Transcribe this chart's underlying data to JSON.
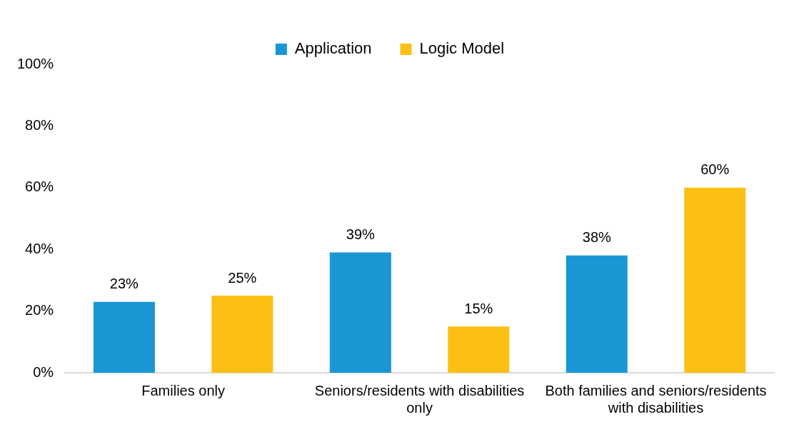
{
  "chart_data": {
    "type": "bar",
    "categories": [
      "Families only",
      "Seniors/residents with disabilities only",
      "Both families and seniors/residents with disabilities"
    ],
    "series": [
      {
        "name": "Application",
        "color": "#1a96d4",
        "values": [
          23,
          39,
          38
        ],
        "value_labels": [
          "23%",
          "39%",
          "38%"
        ]
      },
      {
        "name": "Logic Model",
        "color": "#fcbf14",
        "values": [
          25,
          15,
          60
        ],
        "value_labels": [
          "25%",
          "15%",
          "60%"
        ]
      }
    ],
    "ylim": [
      0,
      100
    ],
    "yticks": [
      {
        "value": 0,
        "label": "0%"
      },
      {
        "value": 20,
        "label": "20%"
      },
      {
        "value": 40,
        "label": "40%"
      },
      {
        "value": 60,
        "label": "60%"
      },
      {
        "value": 80,
        "label": "80%"
      },
      {
        "value": 100,
        "label": "100%"
      }
    ],
    "grid": false,
    "legend": "top"
  }
}
